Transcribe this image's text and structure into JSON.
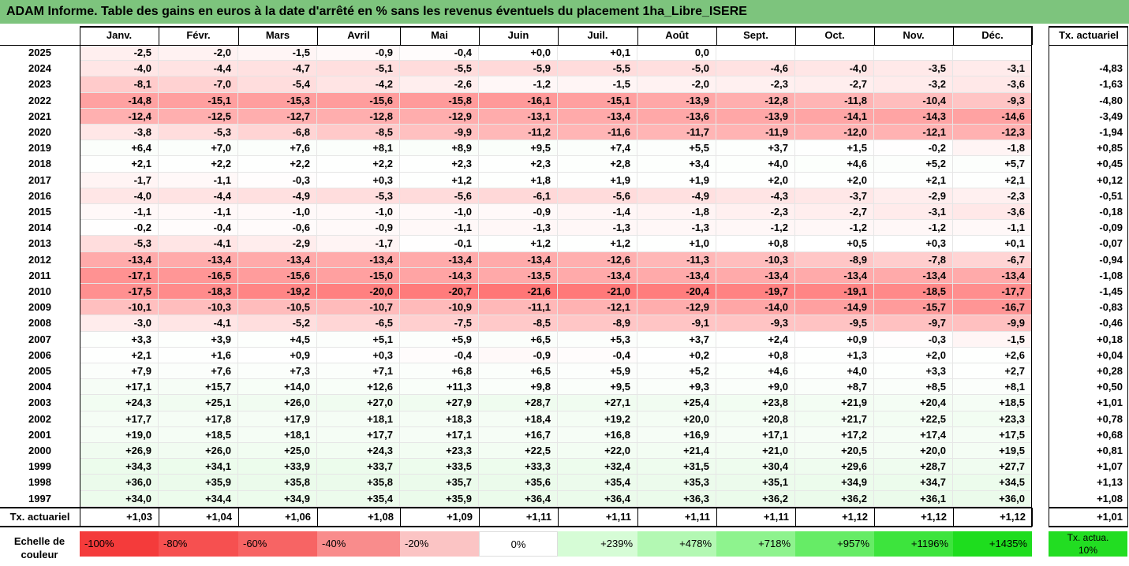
{
  "title": "ADAM Informe. Table des gains en euros à la date d'arrêté en % sans les revenus éventuels du placement 1ha_Libre_ISERE",
  "months": [
    "Janv.",
    "Févr.",
    "Mars",
    "Avril",
    "Mai",
    "Juin",
    "Juil.",
    "Août",
    "Sept.",
    "Oct.",
    "Nov.",
    "Déc."
  ],
  "tx_header": "Tx. actuariel",
  "rows": [
    {
      "year": "2025",
      "values": [
        "-2,5",
        "-2,0",
        "-1,5",
        "-0,9",
        "-0,4",
        "+0,0",
        "+0,1",
        "0,0",
        "",
        "",
        "",
        ""
      ],
      "tx": ""
    },
    {
      "year": "2024",
      "values": [
        "-4,0",
        "-4,4",
        "-4,7",
        "-5,1",
        "-5,5",
        "-5,9",
        "-5,5",
        "-5,0",
        "-4,6",
        "-4,0",
        "-3,5",
        "-3,1"
      ],
      "tx": "-4,83"
    },
    {
      "year": "2023",
      "values": [
        "-8,1",
        "-7,0",
        "-5,4",
        "-4,2",
        "-2,6",
        "-1,2",
        "-1,5",
        "-2,0",
        "-2,3",
        "-2,7",
        "-3,2",
        "-3,6"
      ],
      "tx": "-1,63"
    },
    {
      "year": "2022",
      "values": [
        "-14,8",
        "-15,1",
        "-15,3",
        "-15,6",
        "-15,8",
        "-16,1",
        "-15,1",
        "-13,9",
        "-12,8",
        "-11,8",
        "-10,4",
        "-9,3"
      ],
      "tx": "-4,80"
    },
    {
      "year": "2021",
      "values": [
        "-12,4",
        "-12,5",
        "-12,7",
        "-12,8",
        "-12,9",
        "-13,1",
        "-13,4",
        "-13,6",
        "-13,9",
        "-14,1",
        "-14,3",
        "-14,6"
      ],
      "tx": "-3,49"
    },
    {
      "year": "2020",
      "values": [
        "-3,8",
        "-5,3",
        "-6,8",
        "-8,5",
        "-9,9",
        "-11,2",
        "-11,6",
        "-11,7",
        "-11,9",
        "-12,0",
        "-12,1",
        "-12,3"
      ],
      "tx": "-1,94"
    },
    {
      "year": "2019",
      "values": [
        "+6,4",
        "+7,0",
        "+7,6",
        "+8,1",
        "+8,9",
        "+9,5",
        "+7,4",
        "+5,5",
        "+3,7",
        "+1,5",
        "-0,2",
        "-1,8"
      ],
      "tx": "+0,85"
    },
    {
      "year": "2018",
      "values": [
        "+2,1",
        "+2,2",
        "+2,2",
        "+2,2",
        "+2,3",
        "+2,3",
        "+2,8",
        "+3,4",
        "+4,0",
        "+4,6",
        "+5,2",
        "+5,7"
      ],
      "tx": "+0,45"
    },
    {
      "year": "2017",
      "values": [
        "-1,7",
        "-1,1",
        "-0,3",
        "+0,3",
        "+1,2",
        "+1,8",
        "+1,9",
        "+1,9",
        "+2,0",
        "+2,0",
        "+2,1",
        "+2,1"
      ],
      "tx": "+0,12"
    },
    {
      "year": "2016",
      "values": [
        "-4,0",
        "-4,4",
        "-4,9",
        "-5,3",
        "-5,6",
        "-6,1",
        "-5,6",
        "-4,9",
        "-4,3",
        "-3,7",
        "-2,9",
        "-2,3"
      ],
      "tx": "-0,51"
    },
    {
      "year": "2015",
      "values": [
        "-1,1",
        "-1,1",
        "-1,0",
        "-1,0",
        "-1,0",
        "-0,9",
        "-1,4",
        "-1,8",
        "-2,3",
        "-2,7",
        "-3,1",
        "-3,6"
      ],
      "tx": "-0,18"
    },
    {
      "year": "2014",
      "values": [
        "-0,2",
        "-0,4",
        "-0,6",
        "-0,9",
        "-1,1",
        "-1,3",
        "-1,3",
        "-1,3",
        "-1,2",
        "-1,2",
        "-1,2",
        "-1,1"
      ],
      "tx": "-0,09"
    },
    {
      "year": "2013",
      "values": [
        "-5,3",
        "-4,1",
        "-2,9",
        "-1,7",
        "-0,1",
        "+1,2",
        "+1,2",
        "+1,0",
        "+0,8",
        "+0,5",
        "+0,3",
        "+0,1"
      ],
      "tx": "-0,07"
    },
    {
      "year": "2012",
      "values": [
        "-13,4",
        "-13,4",
        "-13,4",
        "-13,4",
        "-13,4",
        "-13,4",
        "-12,6",
        "-11,3",
        "-10,3",
        "-8,9",
        "-7,8",
        "-6,7"
      ],
      "tx": "-0,94"
    },
    {
      "year": "2011",
      "values": [
        "-17,1",
        "-16,5",
        "-15,6",
        "-15,0",
        "-14,3",
        "-13,5",
        "-13,4",
        "-13,4",
        "-13,4",
        "-13,4",
        "-13,4",
        "-13,4"
      ],
      "tx": "-1,08"
    },
    {
      "year": "2010",
      "values": [
        "-17,5",
        "-18,3",
        "-19,2",
        "-20,0",
        "-20,7",
        "-21,6",
        "-21,0",
        "-20,4",
        "-19,7",
        "-19,1",
        "-18,5",
        "-17,7"
      ],
      "tx": "-1,45"
    },
    {
      "year": "2009",
      "values": [
        "-10,1",
        "-10,3",
        "-10,5",
        "-10,7",
        "-10,9",
        "-11,1",
        "-12,1",
        "-12,9",
        "-14,0",
        "-14,9",
        "-15,7",
        "-16,7"
      ],
      "tx": "-0,83"
    },
    {
      "year": "2008",
      "values": [
        "-3,0",
        "-4,1",
        "-5,2",
        "-6,5",
        "-7,5",
        "-8,5",
        "-8,9",
        "-9,1",
        "-9,3",
        "-9,5",
        "-9,7",
        "-9,9"
      ],
      "tx": "-0,46"
    },
    {
      "year": "2007",
      "values": [
        "+3,3",
        "+3,9",
        "+4,5",
        "+5,1",
        "+5,9",
        "+6,5",
        "+5,3",
        "+3,7",
        "+2,4",
        "+0,9",
        "-0,3",
        "-1,5"
      ],
      "tx": "+0,18"
    },
    {
      "year": "2006",
      "values": [
        "+2,1",
        "+1,6",
        "+0,9",
        "+0,3",
        "-0,4",
        "-0,9",
        "-0,4",
        "+0,2",
        "+0,8",
        "+1,3",
        "+2,0",
        "+2,6"
      ],
      "tx": "+0,04"
    },
    {
      "year": "2005",
      "values": [
        "+7,9",
        "+7,6",
        "+7,3",
        "+7,1",
        "+6,8",
        "+6,5",
        "+5,9",
        "+5,2",
        "+4,6",
        "+4,0",
        "+3,3",
        "+2,7"
      ],
      "tx": "+0,28"
    },
    {
      "year": "2004",
      "values": [
        "+17,1",
        "+15,7",
        "+14,0",
        "+12,6",
        "+11,3",
        "+9,8",
        "+9,5",
        "+9,3",
        "+9,0",
        "+8,7",
        "+8,5",
        "+8,1"
      ],
      "tx": "+0,50"
    },
    {
      "year": "2003",
      "values": [
        "+24,3",
        "+25,1",
        "+26,0",
        "+27,0",
        "+27,9",
        "+28,7",
        "+27,1",
        "+25,4",
        "+23,8",
        "+21,9",
        "+20,4",
        "+18,5"
      ],
      "tx": "+1,01"
    },
    {
      "year": "2002",
      "values": [
        "+17,7",
        "+17,8",
        "+17,9",
        "+18,1",
        "+18,3",
        "+18,4",
        "+19,2",
        "+20,0",
        "+20,8",
        "+21,7",
        "+22,5",
        "+23,3"
      ],
      "tx": "+0,78"
    },
    {
      "year": "2001",
      "values": [
        "+19,0",
        "+18,5",
        "+18,1",
        "+17,7",
        "+17,1",
        "+16,7",
        "+16,8",
        "+16,9",
        "+17,1",
        "+17,2",
        "+17,4",
        "+17,5"
      ],
      "tx": "+0,68"
    },
    {
      "year": "2000",
      "values": [
        "+26,9",
        "+26,0",
        "+25,0",
        "+24,3",
        "+23,3",
        "+22,5",
        "+22,0",
        "+21,4",
        "+21,0",
        "+20,5",
        "+20,0",
        "+19,5"
      ],
      "tx": "+0,81"
    },
    {
      "year": "1999",
      "values": [
        "+34,3",
        "+34,1",
        "+33,9",
        "+33,7",
        "+33,5",
        "+33,3",
        "+32,4",
        "+31,5",
        "+30,4",
        "+29,6",
        "+28,7",
        "+27,7"
      ],
      "tx": "+1,07"
    },
    {
      "year": "1998",
      "values": [
        "+36,0",
        "+35,9",
        "+35,8",
        "+35,8",
        "+35,7",
        "+35,6",
        "+35,4",
        "+35,3",
        "+35,1",
        "+34,9",
        "+34,7",
        "+34,5"
      ],
      "tx": "+1,13"
    },
    {
      "year": "1997",
      "values": [
        "+34,0",
        "+34,4",
        "+34,9",
        "+35,4",
        "+35,9",
        "+36,4",
        "+36,4",
        "+36,3",
        "+36,2",
        "+36,2",
        "+36,1",
        "+36,0"
      ],
      "tx": "+1,08"
    }
  ],
  "footer": {
    "label": "Tx. actuariel",
    "values": [
      "+1,03",
      "+1,04",
      "+1,06",
      "+1,08",
      "+1,09",
      "+1,11",
      "+1,11",
      "+1,11",
      "+1,11",
      "+1,12",
      "+1,12",
      "+1,12"
    ],
    "tx": "+1,01"
  },
  "legend": {
    "label": "Echelle de couleur",
    "items": [
      {
        "text": "-100%",
        "color": "#f43b3b",
        "align": "left"
      },
      {
        "text": "-80%",
        "color": "#f65050",
        "align": "left"
      },
      {
        "text": "-60%",
        "color": "#f76464",
        "align": "left"
      },
      {
        "text": "-40%",
        "color": "#f98c8c",
        "align": "left"
      },
      {
        "text": "-20%",
        "color": "#fbc4c4",
        "align": "left"
      },
      {
        "text": "0%",
        "color": "#ffffff",
        "align": "center"
      },
      {
        "text": "+239%",
        "color": "#d6fcd6",
        "align": "right"
      },
      {
        "text": "+478%",
        "color": "#b3f8b3",
        "align": "right"
      },
      {
        "text": "+718%",
        "color": "#8ef38e",
        "align": "right"
      },
      {
        "text": "+957%",
        "color": "#66ec66",
        "align": "right"
      },
      {
        "text": "+1196%",
        "color": "#3de43d",
        "align": "right"
      },
      {
        "text": "+1435%",
        "color": "#1edd1e",
        "align": "right"
      }
    ],
    "tx_label": "Tx. actua. 10%",
    "tx_color": "#22dd22"
  },
  "colors": {
    "title_bg": "#7dc47d",
    "negative_max": "#f47474",
    "positive_max": "#eafbea"
  }
}
